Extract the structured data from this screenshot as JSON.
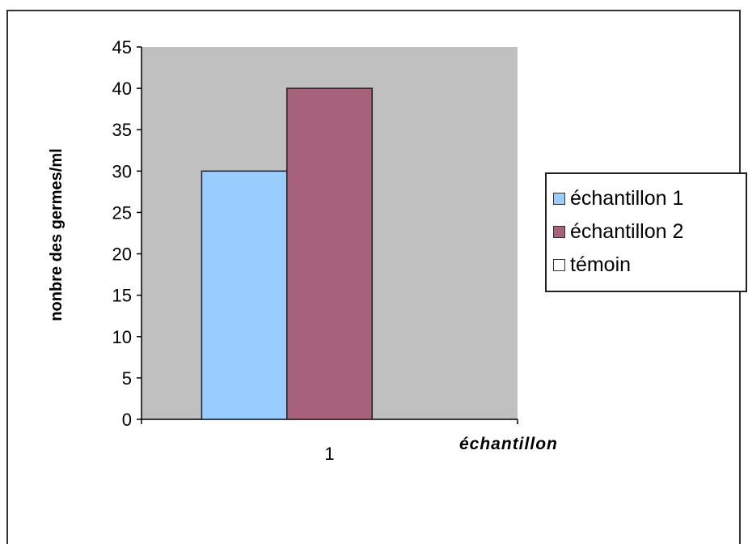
{
  "colors": {
    "plot_bg": "#c0c0c0",
    "series_1": "#99ccff",
    "series_2": "#a8617a",
    "series_3": "#ffffff"
  },
  "chart_data": {
    "type": "bar",
    "categories": [
      "1"
    ],
    "series": [
      {
        "name": "échantillon 1",
        "values": [
          30
        ],
        "color": "#99ccff"
      },
      {
        "name": "échantillon 2",
        "values": [
          40
        ],
        "color": "#a8617a"
      },
      {
        "name": "témoin",
        "values": [
          0
        ],
        "color": "#ffffff"
      }
    ],
    "title": "",
    "xlabel": "échantillon",
    "ylabel": "nonbre des germes/ml",
    "ylim": [
      0,
      45
    ],
    "yticks": [
      "0",
      "5",
      "10",
      "15",
      "20",
      "25",
      "30",
      "35",
      "40",
      "45"
    ],
    "grid": false,
    "legend_position": "right"
  }
}
